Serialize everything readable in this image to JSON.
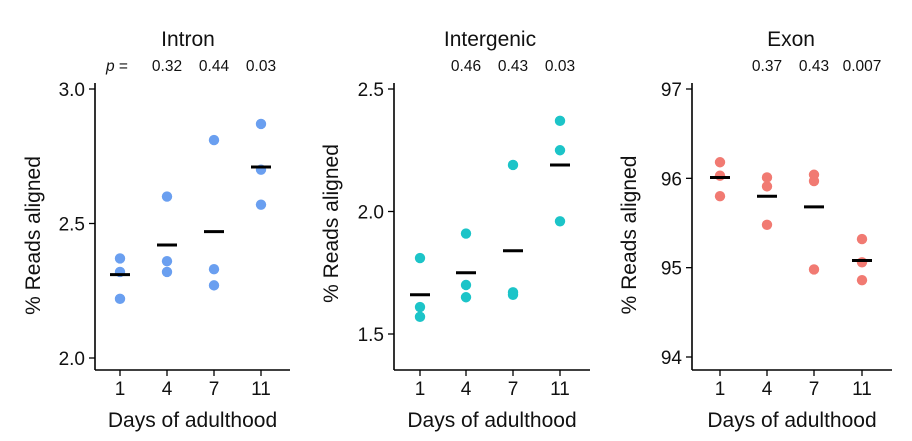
{
  "chart_data": [
    {
      "type": "scatter",
      "title": "Intron",
      "xlabel": "Days of adulthood",
      "ylabel": "% Reads aligned",
      "categories": [
        "1",
        "4",
        "7",
        "11"
      ],
      "ylim": [
        2.0,
        3.0
      ],
      "yticks": [
        "2.0",
        "2.5",
        "3.0"
      ],
      "color": "#6a9ff0",
      "p_prefix": "p",
      "p_equals": " = ",
      "p_values": [
        "0.32",
        "0.44",
        "0.03"
      ],
      "points": [
        [
          2.22,
          2.32,
          2.37
        ],
        [
          2.32,
          2.36,
          2.6
        ],
        [
          2.27,
          2.33,
          2.81
        ],
        [
          2.57,
          2.7,
          2.87
        ]
      ],
      "means": [
        2.31,
        2.42,
        2.47,
        2.71
      ]
    },
    {
      "type": "scatter",
      "title": "Intergenic",
      "xlabel": "Days of adulthood",
      "ylabel": "% Reads aligned",
      "categories": [
        "1",
        "4",
        "7",
        "11"
      ],
      "ylim": [
        1.5,
        2.5
      ],
      "yticks": [
        "1.5",
        "2.0",
        "2.5"
      ],
      "color": "#1cc4c8",
      "p_values": [
        "0.46",
        "0.43",
        "0.03"
      ],
      "points": [
        [
          1.57,
          1.61,
          1.81
        ],
        [
          1.65,
          1.7,
          1.91
        ],
        [
          1.66,
          1.67,
          2.19
        ],
        [
          1.96,
          2.25,
          2.37
        ]
      ],
      "means": [
        1.66,
        1.75,
        1.84,
        2.19
      ]
    },
    {
      "type": "scatter",
      "title": "Exon",
      "xlabel": "Days of adulthood",
      "ylabel": "% Reads aligned",
      "categories": [
        "1",
        "4",
        "7",
        "11"
      ],
      "ylim": [
        94,
        97
      ],
      "yticks": [
        "94",
        "95",
        "96",
        "97"
      ],
      "color": "#f17a72",
      "p_values": [
        "0.37",
        "0.43",
        "0.007"
      ],
      "points": [
        [
          95.8,
          96.03,
          96.18
        ],
        [
          95.48,
          95.91,
          96.01
        ],
        [
          94.98,
          95.97,
          96.04
        ],
        [
          94.86,
          95.06,
          95.32
        ]
      ],
      "means": [
        96.01,
        95.8,
        95.68,
        95.08
      ]
    }
  ]
}
